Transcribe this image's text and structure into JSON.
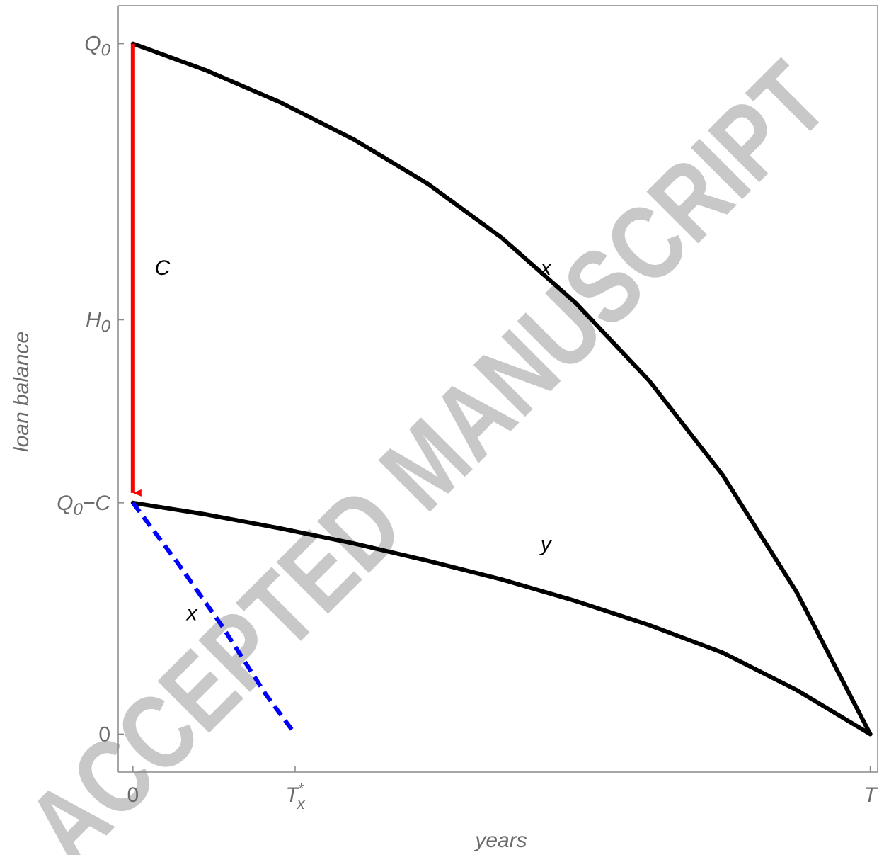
{
  "chart_data": {
    "type": "line",
    "xlabel": "years",
    "ylabel": "loan balance",
    "x_ticks": [
      {
        "value": 0,
        "label": "0"
      },
      {
        "value": 2.2,
        "label": "T",
        "sub": "x",
        "sup": "*"
      },
      {
        "value": 10,
        "label": "T"
      }
    ],
    "y_ticks": [
      {
        "value": 1.0,
        "label": "Q",
        "sub": "0",
        "suffix": ""
      },
      {
        "value": 0.6,
        "label": "H",
        "sub": "0",
        "suffix": ""
      },
      {
        "value": 0.335,
        "label": "Q",
        "sub": "0",
        "suffix": "−C"
      },
      {
        "value": 0,
        "label": "0",
        "sub": "",
        "suffix": ""
      }
    ],
    "xlim": [
      -0.2,
      10.1
    ],
    "ylim": [
      -0.055,
      1.055
    ],
    "series": [
      {
        "name": "x",
        "style": "solid",
        "color": "#000000",
        "x": [
          0,
          1,
          2,
          3,
          4,
          5,
          6,
          7,
          8,
          9,
          10
        ],
        "y": [
          1.0,
          0.961,
          0.915,
          0.861,
          0.797,
          0.719,
          0.625,
          0.512,
          0.375,
          0.206,
          0.0
        ]
      },
      {
        "name": "y",
        "style": "solid",
        "color": "#000000",
        "x": [
          0,
          1,
          2,
          3,
          4,
          5,
          6,
          7,
          8,
          9,
          10
        ],
        "y": [
          0.335,
          0.318,
          0.298,
          0.276,
          0.251,
          0.224,
          0.193,
          0.158,
          0.118,
          0.064,
          0.0
        ]
      },
      {
        "name": "x",
        "style": "dashed",
        "color": "#0000ff",
        "x": [
          0,
          0.6,
          1.2,
          1.8,
          2.2
        ],
        "y": [
          0.335,
          0.249,
          0.158,
          0.058,
          0.0
        ]
      }
    ],
    "arrow": {
      "label": "C",
      "color": "#ff0000",
      "x": 0,
      "from": 1.0,
      "to": 0.335
    },
    "labels": [
      {
        "text": "C",
        "x": 0.4,
        "y": 0.665
      },
      {
        "text": "x",
        "x": 5.6,
        "y": 0.665
      },
      {
        "text": "y",
        "x": 5.6,
        "y": 0.265
      },
      {
        "text": "x",
        "x": 0.8,
        "y": 0.165
      }
    ],
    "grid": false,
    "watermark": "ACCEPTED MANUSCRIPT"
  }
}
